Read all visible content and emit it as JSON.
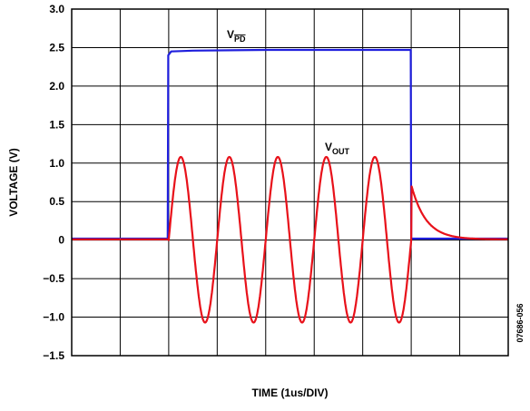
{
  "chart_data": {
    "type": "line",
    "xlabel": "TIME (1us/DIV)",
    "ylabel": "VOLTAGE (V)",
    "ylim": [
      -1.5,
      3.0
    ],
    "xlim": [
      0,
      9
    ],
    "yticks": [
      {
        "value": 3.0,
        "label": "3.0"
      },
      {
        "value": 2.5,
        "label": "2.5"
      },
      {
        "value": 2.0,
        "label": "2.0"
      },
      {
        "value": 1.5,
        "label": "1.5"
      },
      {
        "value": 1.0,
        "label": "1.0"
      },
      {
        "value": 0.5,
        "label": "0.5"
      },
      {
        "value": 0,
        "label": "0"
      },
      {
        "value": -0.5,
        "label": "−0.5"
      },
      {
        "value": -1.0,
        "label": "−1.0"
      },
      {
        "value": -1.5,
        "label": "−1.5"
      }
    ],
    "grid": true,
    "series": [
      {
        "name": "VPD",
        "label_main": "V",
        "label_sub": "PD",
        "label_overline": true,
        "color": "#1f1fdd",
        "x": [
          0,
          1.98,
          1.99,
          2.05,
          2.5,
          4,
          5,
          6,
          6.95,
          6.99,
          7.0,
          9
        ],
        "values": [
          0.02,
          0.02,
          2.4,
          2.45,
          2.46,
          2.47,
          2.47,
          2.47,
          2.47,
          2.47,
          0.02,
          0.02
        ]
      },
      {
        "name": "VOUT",
        "label_main": "V",
        "label_sub": "OUT",
        "label_overline": false,
        "color": "#e8111a",
        "waveform": {
          "baseline": 0.01,
          "burst_start": 2.0,
          "burst_end": 7.0,
          "cycles": 5,
          "peak": 1.08,
          "trough": -1.07,
          "tail_peak": 0.72,
          "tail_decay_div": 0.3
        }
      }
    ],
    "annotation_id": "07686-056"
  }
}
